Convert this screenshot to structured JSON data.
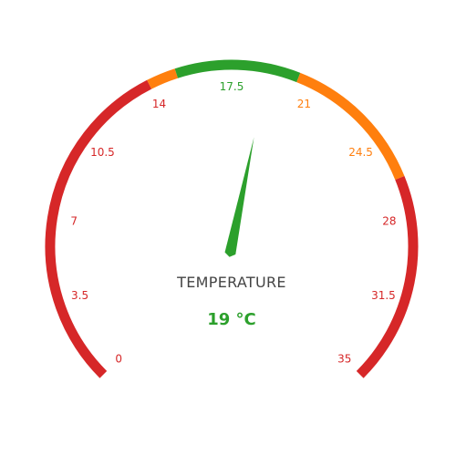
{
  "gauge": {
    "title": "TEMPERATURE",
    "value": 19,
    "unit": "°C",
    "value_text": "19 °C",
    "min": 0,
    "max": 35,
    "ticks": [
      "0",
      "3.5",
      "7",
      "10.5",
      "14",
      "17.5",
      "21",
      "24.5",
      "28",
      "31.5",
      "35"
    ],
    "bands": [
      {
        "from": 0,
        "to": 14,
        "color": "#d62728"
      },
      {
        "from": 14,
        "to": 15.2,
        "color": "#ff7f0e"
      },
      {
        "from": 15.2,
        "to": 20.3,
        "color": "#2ca02c"
      },
      {
        "from": 20.3,
        "to": 26.3,
        "color": "#ff7f0e"
      },
      {
        "from": 26.3,
        "to": 35,
        "color": "#d62728"
      }
    ],
    "colors": {
      "red": "#d62728",
      "orange": "#ff7f0e",
      "green": "#2ca02c",
      "title": "#444444"
    }
  }
}
